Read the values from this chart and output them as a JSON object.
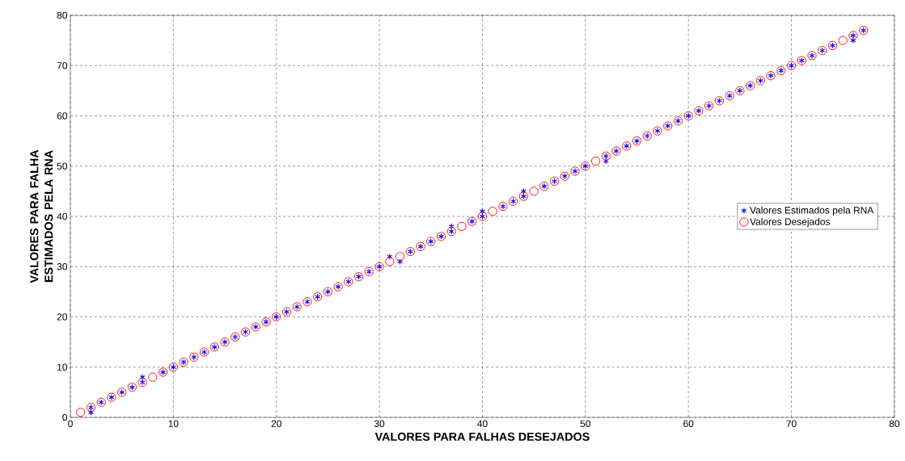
{
  "chart_data": {
    "type": "scatter",
    "xlabel": "VALORES PARA FALHAS DESEJADOS",
    "ylabel": "VALORES PARA FALHA ESTIMADOS PELA RNA",
    "xlim": [
      0,
      80
    ],
    "ylim": [
      0,
      80
    ],
    "xticks": [
      0,
      10,
      20,
      30,
      40,
      50,
      60,
      70,
      80
    ],
    "yticks": [
      0,
      10,
      20,
      30,
      40,
      50,
      60,
      70,
      80
    ],
    "grid": true,
    "legend": "right",
    "series": [
      {
        "name": "Valores Estimados pela RNA",
        "color": "#0000ff",
        "marker": "cross",
        "x": [
          2,
          2,
          3,
          4,
          5,
          6,
          7,
          7,
          9,
          10,
          11,
          12,
          13,
          14,
          15,
          16,
          17,
          18,
          19,
          20,
          21,
          22,
          23,
          24,
          25,
          26,
          27,
          28,
          29,
          30,
          31,
          32,
          33,
          34,
          35,
          36,
          37,
          37,
          39,
          40,
          40,
          42,
          43,
          44,
          44,
          46,
          47,
          48,
          49,
          50,
          52,
          52,
          53,
          54,
          55,
          56,
          57,
          58,
          59,
          60,
          61,
          62,
          63,
          64,
          65,
          66,
          67,
          68,
          69,
          70,
          71,
          72,
          73,
          74,
          76,
          76,
          77
        ],
        "values": [
          1,
          2,
          3,
          4,
          5,
          6,
          7,
          8,
          9,
          10,
          11,
          12,
          13,
          14,
          15,
          16,
          17,
          18,
          19,
          20,
          21,
          22,
          23,
          24,
          25,
          26,
          27,
          28,
          29,
          30,
          32,
          31,
          33,
          34,
          35,
          36,
          37,
          38,
          39,
          40,
          41,
          42,
          43,
          44,
          45,
          46,
          47,
          48,
          49,
          50,
          51,
          52,
          53,
          54,
          55,
          56,
          57,
          58,
          59,
          60,
          61,
          62,
          63,
          64,
          65,
          66,
          67,
          68,
          69,
          70,
          71,
          72,
          73,
          74,
          75,
          76,
          77
        ]
      },
      {
        "name": "Valores Desejados",
        "color": "#ff0000",
        "marker": "circle",
        "x": [
          1,
          2,
          3,
          4,
          5,
          6,
          7,
          8,
          9,
          10,
          11,
          12,
          13,
          14,
          15,
          16,
          17,
          18,
          19,
          20,
          21,
          22,
          23,
          24,
          25,
          26,
          27,
          28,
          29,
          30,
          31,
          32,
          33,
          34,
          35,
          36,
          37,
          38,
          39,
          40,
          41,
          42,
          43,
          44,
          45,
          46,
          47,
          48,
          49,
          50,
          51,
          52,
          53,
          54,
          55,
          56,
          57,
          58,
          59,
          60,
          61,
          62,
          63,
          64,
          65,
          66,
          67,
          68,
          69,
          70,
          71,
          72,
          73,
          74,
          75,
          76,
          77
        ],
        "values": [
          1,
          2,
          3,
          4,
          5,
          6,
          7,
          8,
          9,
          10,
          11,
          12,
          13,
          14,
          15,
          16,
          17,
          18,
          19,
          20,
          21,
          22,
          23,
          24,
          25,
          26,
          27,
          28,
          29,
          30,
          31,
          32,
          33,
          34,
          35,
          36,
          37,
          38,
          39,
          40,
          41,
          42,
          43,
          44,
          45,
          46,
          47,
          48,
          49,
          50,
          51,
          52,
          53,
          54,
          55,
          56,
          57,
          58,
          59,
          60,
          61,
          62,
          63,
          64,
          65,
          66,
          67,
          68,
          69,
          70,
          71,
          72,
          73,
          74,
          75,
          76,
          77
        ]
      }
    ]
  }
}
